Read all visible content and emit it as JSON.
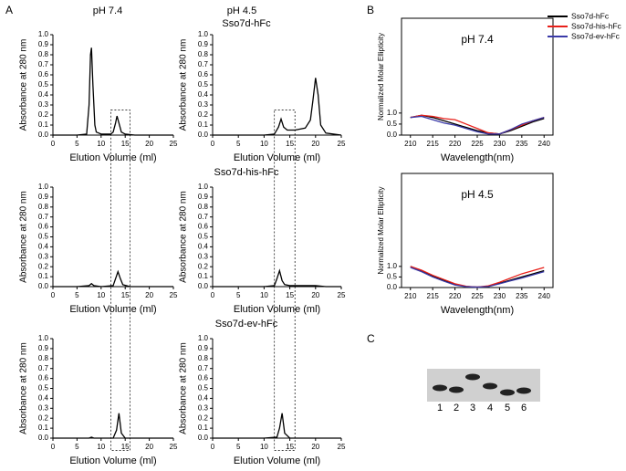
{
  "panel_labels": [
    "A",
    "B",
    "C"
  ],
  "panel_a": {
    "column_titles": [
      "pH 7.4",
      "pH 4.5"
    ],
    "row_titles": [
      "Sso7d-hFc",
      "Sso7d-his-hFc",
      "Sso7d-ev-hFc"
    ]
  },
  "gel": {
    "lanes": [
      "1",
      "2",
      "3",
      "4",
      "5",
      "6"
    ]
  },
  "chart_data": [
    {
      "type": "line",
      "xlabel": "Elution Volume (ml)",
      "ylabel": "Absorbance at 280 nm",
      "color": "#000000",
      "x": [
        0,
        5,
        7,
        7.5,
        7.8,
        8,
        8.3,
        8.7,
        9,
        10,
        12,
        12.5,
        13,
        13.3,
        13.7,
        14.2,
        15,
        17,
        20,
        25
      ],
      "values": [
        0,
        0,
        0.01,
        0.3,
        0.8,
        0.87,
        0.5,
        0.1,
        0.03,
        0.01,
        0.01,
        0.03,
        0.12,
        0.19,
        0.12,
        0.03,
        0.01,
        0,
        0,
        0
      ],
      "xlim": [
        0,
        25
      ],
      "xticks": [
        0,
        5,
        10,
        15,
        20,
        25
      ],
      "ylim": [
        0,
        1
      ],
      "yticks": [
        {
          "value": 0,
          "label": "0.0"
        },
        0.1,
        0.2,
        0.3,
        0.4,
        0.5,
        0.6,
        0.7,
        0.8,
        0.9,
        {
          "value": 1,
          "label": "1.0"
        }
      ]
    },
    {
      "type": "line",
      "xlabel": "Elution Volume (ml)",
      "ylabel": "Absorbance at 280 nm",
      "color": "#000000",
      "x": [
        0,
        5,
        10,
        12,
        12.8,
        13.3,
        13.8,
        14.5,
        16,
        18,
        19,
        19.5,
        20,
        20.5,
        21,
        22,
        25
      ],
      "values": [
        0,
        0,
        0,
        0.01,
        0.08,
        0.16,
        0.08,
        0.05,
        0.05,
        0.07,
        0.15,
        0.35,
        0.57,
        0.4,
        0.1,
        0.02,
        0
      ],
      "xlim": [
        0,
        25
      ],
      "xticks": [
        0,
        5,
        10,
        15,
        20,
        25
      ],
      "ylim": [
        0,
        1
      ],
      "yticks": [
        {
          "value": 0,
          "label": "0.0"
        },
        0.1,
        0.2,
        0.3,
        0.4,
        0.5,
        0.6,
        0.7,
        0.8,
        0.9,
        {
          "value": 1,
          "label": "1.0"
        }
      ]
    },
    {
      "type": "line",
      "xlabel": "Elution Volume (ml)",
      "ylabel": "Absorbance at 280 nm",
      "color": "#000000",
      "x": [
        0,
        5,
        7.5,
        8,
        8.5,
        10,
        12.5,
        13,
        13.5,
        14,
        14.5,
        16,
        25
      ],
      "values": [
        0,
        0,
        0.01,
        0.03,
        0.01,
        0,
        0.01,
        0.08,
        0.15,
        0.08,
        0.02,
        0,
        0
      ],
      "xlim": [
        0,
        25
      ],
      "xticks": [
        0,
        5,
        10,
        15,
        20,
        25
      ],
      "ylim": [
        0,
        1
      ],
      "yticks": [
        {
          "value": 0,
          "label": "0.0"
        },
        0.1,
        0.2,
        0.3,
        0.4,
        0.5,
        0.6,
        0.7,
        0.8,
        0.9,
        {
          "value": 1,
          "label": "1.0"
        }
      ]
    },
    {
      "type": "line",
      "xlabel": "Elution Volume (ml)",
      "ylabel": "Absorbance at 280 nm",
      "color": "#000000",
      "x": [
        0,
        5,
        10,
        12,
        12.5,
        13,
        13.5,
        14,
        15,
        20,
        22,
        25
      ],
      "values": [
        0,
        0,
        0,
        0.01,
        0.08,
        0.16,
        0.06,
        0.02,
        0.01,
        0.01,
        0,
        0
      ],
      "xlim": [
        0,
        25
      ],
      "xticks": [
        0,
        5,
        10,
        15,
        20,
        25
      ],
      "ylim": [
        0,
        1
      ],
      "yticks": [
        {
          "value": 0,
          "label": "0.0"
        },
        0.1,
        0.2,
        0.3,
        0.4,
        0.5,
        0.6,
        0.7,
        0.8,
        0.9,
        {
          "value": 1,
          "label": "1.0"
        }
      ]
    },
    {
      "type": "line",
      "xlabel": "Elution Volume (ml)",
      "ylabel": "Absorbance at 280 nm",
      "color": "#000000",
      "x": [
        0,
        7.5,
        8,
        8.5,
        12.5,
        13.2,
        13.7,
        14.2,
        15,
        25
      ],
      "values": [
        0,
        0,
        0.01,
        0,
        0,
        0.08,
        0.25,
        0.05,
        0,
        0
      ],
      "xlim": [
        0,
        25
      ],
      "xticks": [
        0,
        5,
        10,
        15,
        20,
        25
      ],
      "ylim": [
        0,
        1
      ],
      "yticks": [
        {
          "value": 0,
          "label": "0.0"
        },
        0.1,
        0.2,
        0.3,
        0.4,
        0.5,
        0.6,
        0.7,
        0.8,
        0.9,
        {
          "value": 1,
          "label": "1.0"
        }
      ]
    },
    {
      "type": "line",
      "xlabel": "Elution Volume (ml)",
      "ylabel": "Absorbance at 280 nm",
      "color": "#000000",
      "x": [
        0,
        10,
        12.5,
        13,
        13.5,
        14,
        15,
        25
      ],
      "values": [
        0,
        0,
        0.01,
        0.1,
        0.25,
        0.05,
        0,
        0
      ],
      "xlim": [
        0,
        25
      ],
      "xticks": [
        0,
        5,
        10,
        15,
        20,
        25
      ],
      "ylim": [
        0,
        1
      ],
      "yticks": [
        {
          "value": 0,
          "label": "0.0"
        },
        0.1,
        0.2,
        0.3,
        0.4,
        0.5,
        0.6,
        0.7,
        0.8,
        0.9,
        {
          "value": 1,
          "label": "1.0"
        }
      ]
    },
    {
      "type": "line",
      "title": "pH 7.4",
      "xlabel": "Wavelength(nm)",
      "ylabel": "Normalized Molar Ellipticity",
      "legend": "upper right",
      "x": [
        210,
        212.5,
        215,
        217.5,
        220,
        222.5,
        225,
        227.5,
        230,
        232.5,
        235,
        237.5,
        240
      ],
      "series": [
        {
          "name": "Sso7d-hFc",
          "color": "#000000",
          "values": [
            0.8,
            0.9,
            0.8,
            0.65,
            0.5,
            0.35,
            0.2,
            0.1,
            0.05,
            0.2,
            0.4,
            0.6,
            0.75
          ]
        },
        {
          "name": "Sso7d-his-hFc",
          "color": "#e8201a",
          "values": [
            0.8,
            0.9,
            0.85,
            0.75,
            0.7,
            0.5,
            0.3,
            0.1,
            0.05,
            0.25,
            0.45,
            0.65,
            0.8
          ]
        },
        {
          "name": "Sso7d-ev-hFc",
          "color": "#3a3aa8",
          "values": [
            0.8,
            0.85,
            0.7,
            0.55,
            0.45,
            0.3,
            0.15,
            0.05,
            0.05,
            0.25,
            0.5,
            0.65,
            0.8
          ]
        }
      ],
      "xlim": [
        208,
        242
      ],
      "xticks": [
        210,
        215,
        220,
        225,
        230,
        235,
        240
      ],
      "ylim": [
        0,
        5.3
      ],
      "yticks": [
        {
          "value": 0,
          "label": "0.0"
        },
        0.5,
        {
          "value": 1,
          "label": "1.0"
        }
      ]
    },
    {
      "type": "line",
      "title": "pH 4.5",
      "xlabel": "Wavelength(nm)",
      "ylabel": "Normalized Molar Ellipticity",
      "x": [
        210,
        212.5,
        215,
        217.5,
        220,
        222.5,
        225,
        227.5,
        230,
        232.5,
        235,
        237.5,
        240
      ],
      "series": [
        {
          "name": "Sso7d-hFc",
          "color": "#000000",
          "values": [
            1,
            0.8,
            0.55,
            0.35,
            0.15,
            0.05,
            0.02,
            0.05,
            0.2,
            0.35,
            0.5,
            0.65,
            0.8
          ]
        },
        {
          "name": "Sso7d-his-hFc",
          "color": "#e8201a",
          "values": [
            1,
            0.82,
            0.58,
            0.38,
            0.18,
            0.06,
            0.02,
            0.08,
            0.25,
            0.45,
            0.65,
            0.8,
            0.95
          ]
        },
        {
          "name": "Sso7d-ev-hFc",
          "color": "#3a3aa8",
          "values": [
            0.95,
            0.75,
            0.5,
            0.3,
            0.12,
            0.04,
            0.02,
            0.05,
            0.18,
            0.32,
            0.45,
            0.6,
            0.75
          ]
        }
      ],
      "xlim": [
        208,
        242
      ],
      "xticks": [
        210,
        215,
        220,
        225,
        230,
        235,
        240
      ],
      "ylim": [
        0,
        5.4
      ],
      "yticks": [
        {
          "value": 0,
          "label": "0.0"
        },
        0.5,
        {
          "value": 1,
          "label": "1.0"
        }
      ]
    }
  ]
}
